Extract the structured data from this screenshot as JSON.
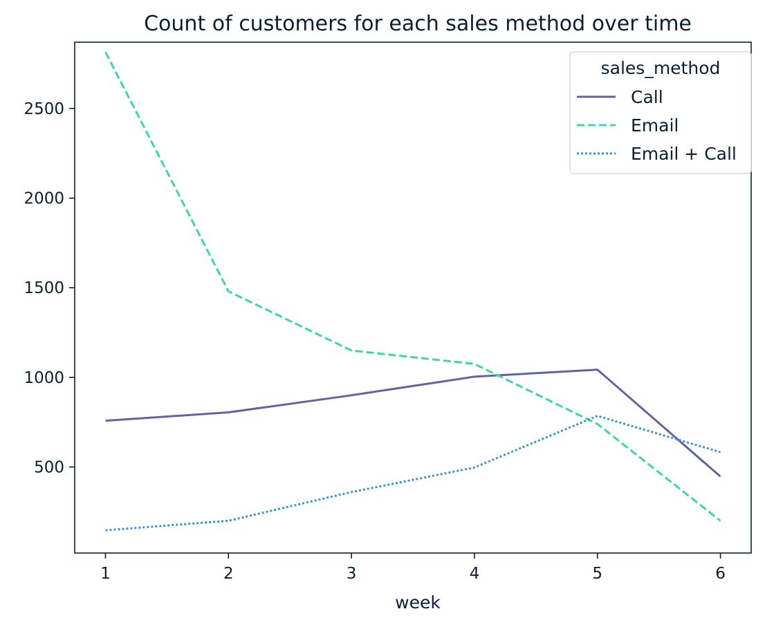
{
  "chart_data": {
    "type": "line",
    "title": "Count of customers for each sales method over time",
    "xlabel": "week",
    "ylabel": "",
    "x": [
      1,
      2,
      3,
      4,
      5,
      6
    ],
    "xticks": [
      "1",
      "2",
      "3",
      "4",
      "5",
      "6"
    ],
    "yticks": [
      "500",
      "1000",
      "1500",
      "2000",
      "2500"
    ],
    "xlim": [
      0.75,
      6.25
    ],
    "ylim": [
      20,
      2870
    ],
    "grid": false,
    "legend": {
      "title": "sales_method",
      "placement": "top-right"
    },
    "series": [
      {
        "name": "Call",
        "values": [
          758,
          805,
          900,
          1004,
          1043,
          447
        ],
        "color": "#63649e",
        "dash": "solid"
      },
      {
        "name": "Email",
        "values": [
          2815,
          1480,
          1150,
          1075,
          740,
          200
        ],
        "color": "#3fd6a2",
        "dash": "dashed"
      },
      {
        "name": "Email + Call",
        "values": [
          147,
          200,
          360,
          497,
          785,
          583
        ],
        "color": "#3c91d6",
        "dash": "dotted"
      }
    ]
  }
}
